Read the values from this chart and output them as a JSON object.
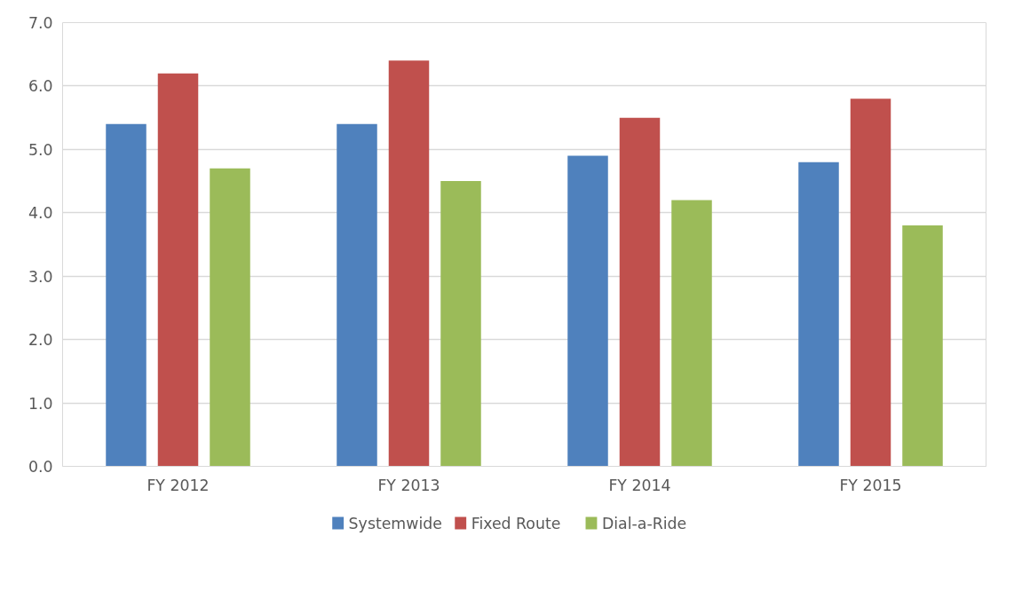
{
  "chart_data": {
    "type": "bar",
    "categories": [
      "FY 2012",
      "FY 2013",
      "FY 2014",
      "FY 2015"
    ],
    "series": [
      {
        "name": "Systemwide",
        "color": "#4f81bd",
        "values": [
          5.4,
          5.4,
          4.9,
          4.8
        ]
      },
      {
        "name": "Fixed Route",
        "color": "#c0504d",
        "values": [
          6.2,
          6.4,
          5.5,
          5.8
        ]
      },
      {
        "name": "Dial-a-Ride",
        "color": "#9bbb59",
        "values": [
          4.7,
          4.5,
          4.2,
          3.8
        ]
      }
    ],
    "ylim": [
      0,
      7
    ],
    "yticks": [
      {
        "value": 0,
        "label": "0.0"
      },
      {
        "value": 1,
        "label": "1.0"
      },
      {
        "value": 2,
        "label": "2.0"
      },
      {
        "value": 3,
        "label": "3.0"
      },
      {
        "value": 4,
        "label": "4.0"
      },
      {
        "value": 5,
        "label": "5.0"
      },
      {
        "value": 6,
        "label": "6.0"
      },
      {
        "value": 7,
        "label": "7.0"
      }
    ],
    "grid": "y",
    "legend": "bottom"
  }
}
